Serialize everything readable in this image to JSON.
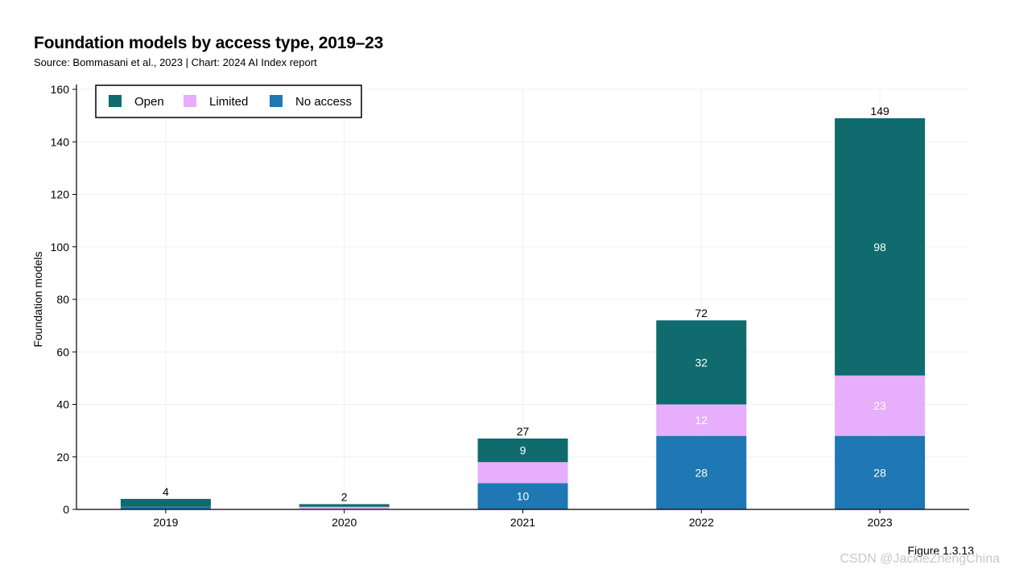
{
  "title": "Foundation models by access type, 2019–23",
  "subtitle": "Source: Bommasani et al., 2023 | Chart: 2024 AI Index report",
  "figure_label": "Figure 1.3.13",
  "watermark": "CSDN @JackieZhengChina",
  "colors": {
    "open": "#0f6b6d",
    "limited": "#e6aefb",
    "no_access": "#1f77b4"
  },
  "chart_data": {
    "type": "bar",
    "stacked": true,
    "title": "Foundation models by access type, 2019–23",
    "xlabel": "",
    "ylabel": "Foundation models",
    "ylim": [
      0,
      160
    ],
    "yticks": [
      0,
      20,
      40,
      60,
      80,
      100,
      120,
      140,
      160
    ],
    "categories": [
      "2019",
      "2020",
      "2021",
      "2022",
      "2023"
    ],
    "series": [
      {
        "key": "no_access",
        "name": "No access",
        "values": [
          1,
          0,
          10,
          28,
          28
        ],
        "labels": [
          "",
          "",
          "10",
          "28",
          "28"
        ]
      },
      {
        "key": "limited",
        "name": "Limited",
        "values": [
          0,
          1,
          8,
          12,
          23
        ],
        "labels": [
          "",
          "",
          "",
          "12",
          "23"
        ]
      },
      {
        "key": "open",
        "name": "Open",
        "values": [
          3,
          1,
          9,
          32,
          98
        ],
        "labels": [
          "",
          "",
          "9",
          "32",
          "98"
        ]
      }
    ],
    "totals": [
      4,
      2,
      27,
      72,
      149
    ],
    "legend": {
      "position": "top-left",
      "order": [
        "Open",
        "Limited",
        "No access"
      ]
    },
    "grid": true
  }
}
